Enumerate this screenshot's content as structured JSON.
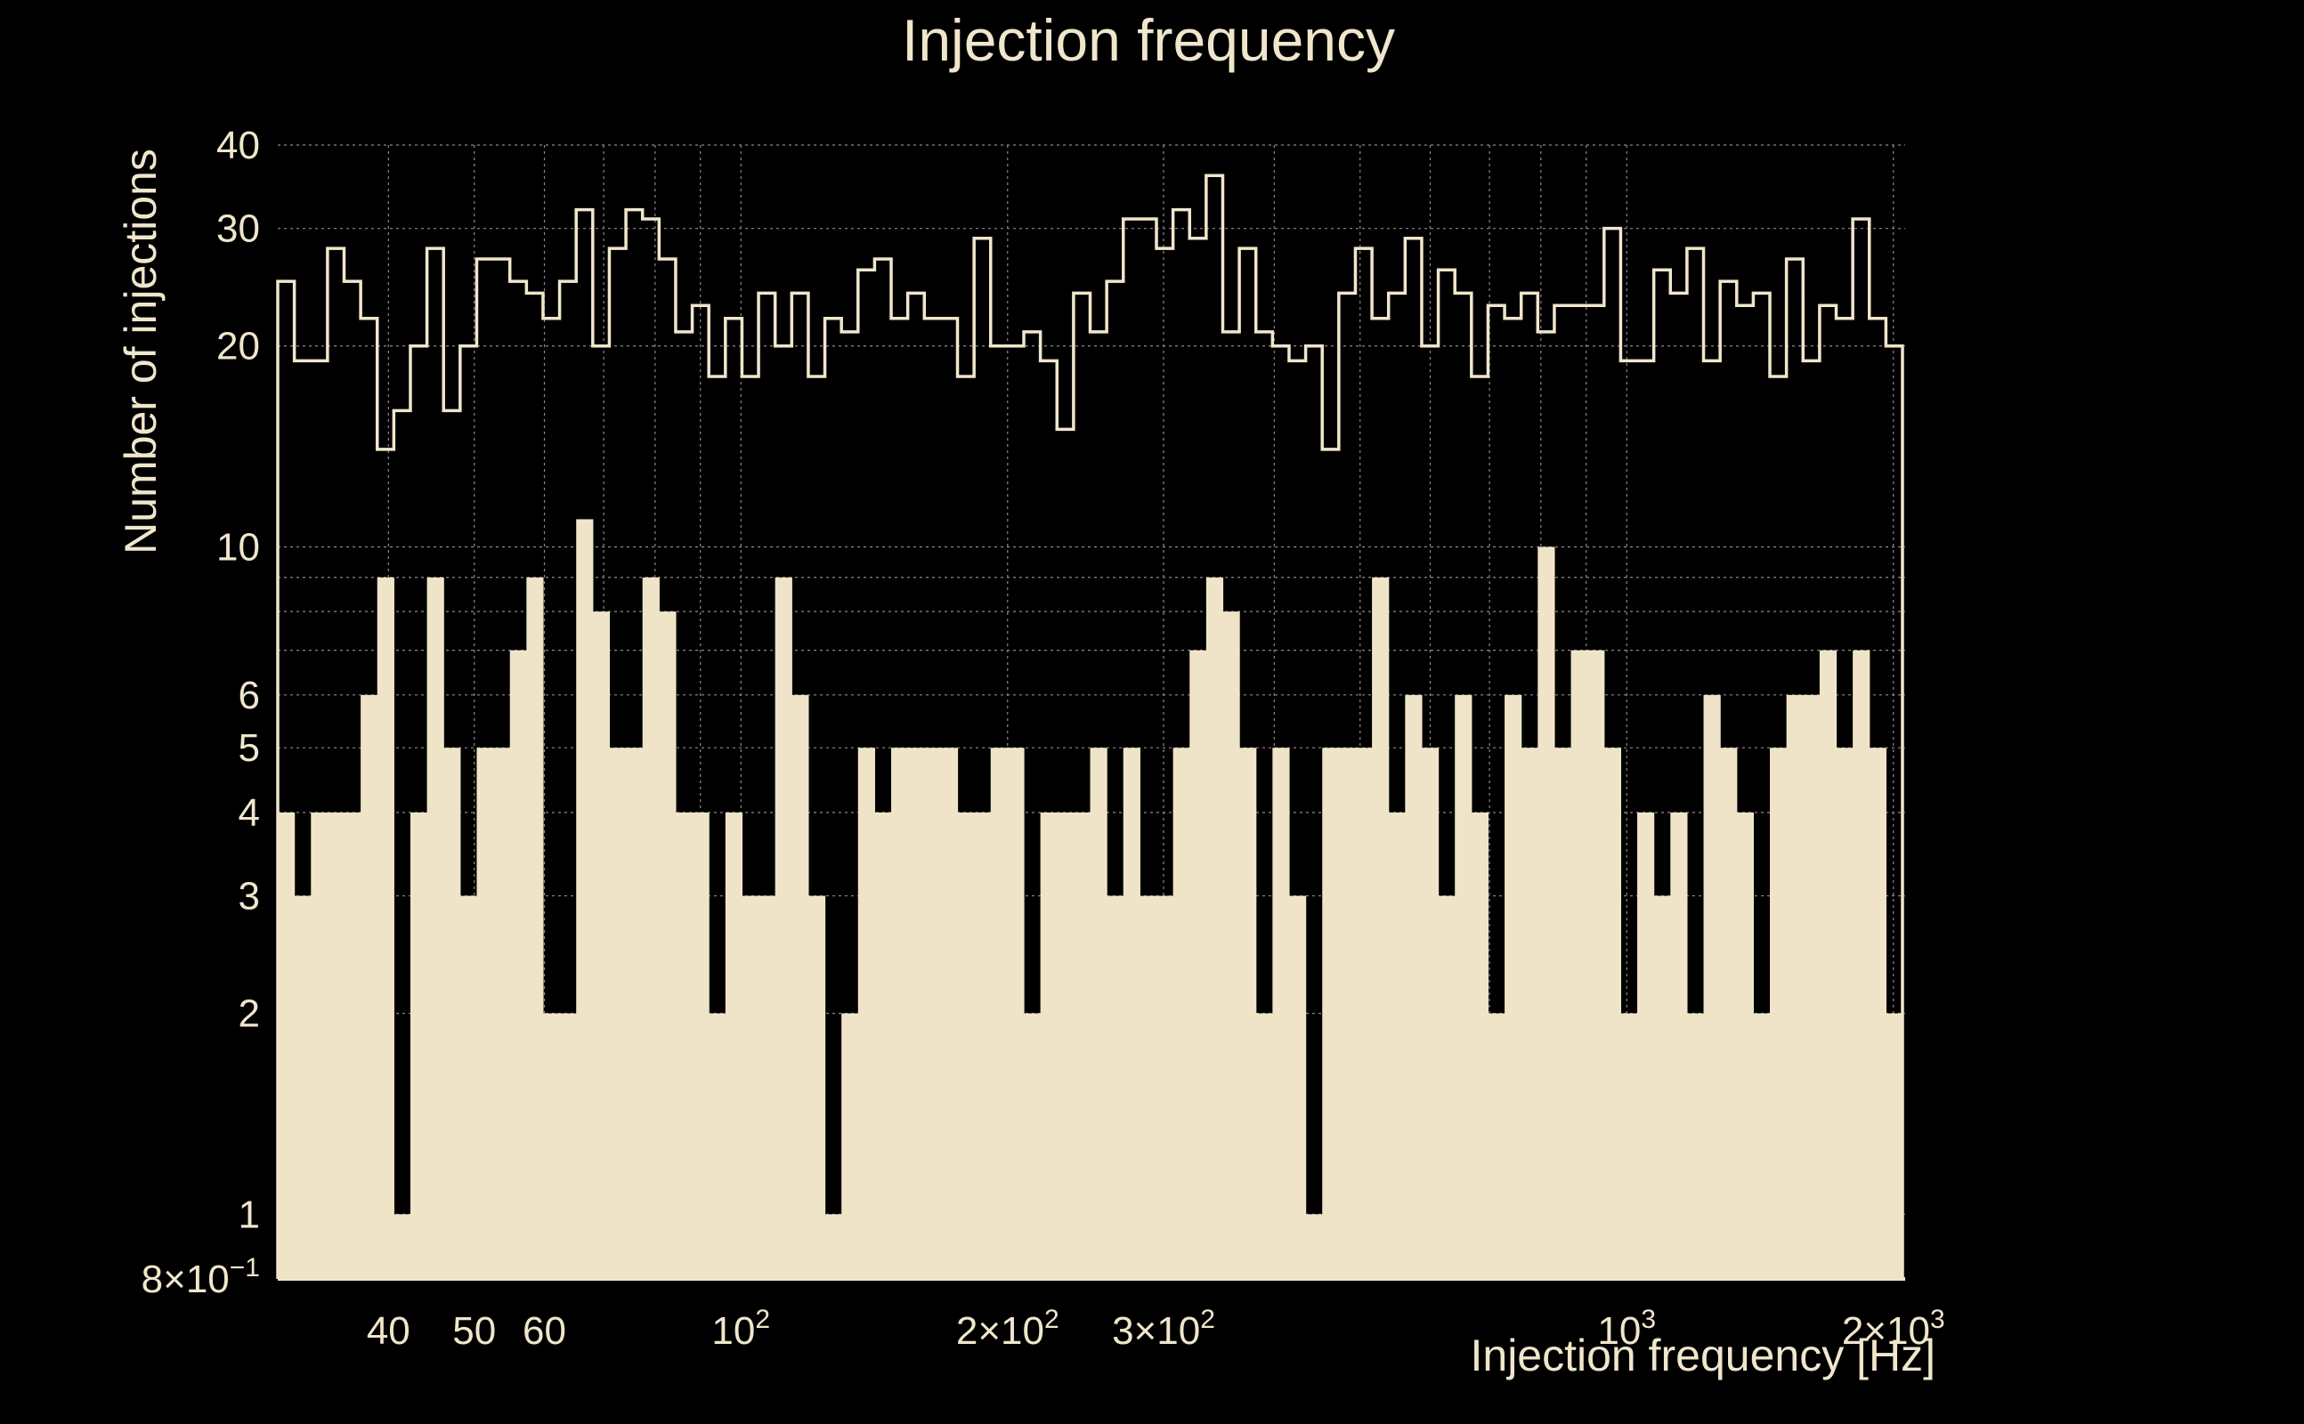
{
  "colors": {
    "background": "#000000",
    "fill": "#efe4c7",
    "line": "#f0e6cc",
    "grid": "#8a8a8a"
  },
  "chart_data": {
    "type": "histogram",
    "title": "Injection frequency",
    "xlabel": "Injection frequency [Hz]",
    "ylabel": "Number of injections",
    "xscale": "log",
    "yscale": "log",
    "xlim": [
      30,
      2048
    ],
    "ylim": [
      0.8,
      40
    ],
    "grid": true,
    "x_ticks": [
      {
        "value": 40,
        "label": "40",
        "sup": ""
      },
      {
        "value": 50,
        "label": "50",
        "sup": ""
      },
      {
        "value": 60,
        "label": "60",
        "sup": ""
      },
      {
        "value": 100,
        "label": "10",
        "sup": "2"
      },
      {
        "value": 200,
        "label": "2×10",
        "sup": "2"
      },
      {
        "value": 300,
        "label": "3×10",
        "sup": "2"
      },
      {
        "value": 1000,
        "label": "10",
        "sup": "3"
      },
      {
        "value": 2000,
        "label": "2×10",
        "sup": "3"
      }
    ],
    "y_ticks": [
      {
        "value": 0.8,
        "label": "8×10",
        "sup": "−1"
      },
      {
        "value": 1,
        "label": "1",
        "sup": ""
      },
      {
        "value": 2,
        "label": "2",
        "sup": ""
      },
      {
        "value": 3,
        "label": "3",
        "sup": ""
      },
      {
        "value": 4,
        "label": "4",
        "sup": ""
      },
      {
        "value": 5,
        "label": "5",
        "sup": ""
      },
      {
        "value": 6,
        "label": "6",
        "sup": ""
      },
      {
        "value": 10,
        "label": "10",
        "sup": ""
      },
      {
        "value": 20,
        "label": "20",
        "sup": ""
      },
      {
        "value": 30,
        "label": "30",
        "sup": ""
      },
      {
        "value": 40,
        "label": "40",
        "sup": ""
      }
    ],
    "y_minor_grid": [
      7,
      8,
      9
    ],
    "series": [
      {
        "name": "filled-histogram",
        "style": "filled",
        "values": [
          4,
          3,
          4,
          4,
          4,
          6,
          9,
          1,
          4,
          9,
          5,
          3,
          5,
          5,
          7,
          9,
          2,
          2,
          11,
          8,
          5,
          5,
          9,
          8,
          4,
          4,
          2,
          4,
          3,
          3,
          9,
          6,
          3,
          1,
          2,
          5,
          4,
          5,
          5,
          5,
          5,
          4,
          4,
          5,
          5,
          2,
          4,
          4,
          4,
          5,
          3,
          5,
          3,
          3,
          5,
          7,
          9,
          8,
          5,
          2,
          5,
          3,
          1,
          5,
          5,
          5,
          9,
          4,
          6,
          5,
          3,
          6,
          4,
          2,
          6,
          5,
          10,
          5,
          7,
          7,
          5,
          2,
          4,
          3,
          4,
          2,
          6,
          5,
          4,
          2,
          5,
          6,
          6,
          7,
          5,
          7,
          5,
          2
        ]
      },
      {
        "name": "outline-histogram",
        "style": "step",
        "values": [
          25,
          19,
          19,
          28,
          25,
          22,
          14,
          16,
          20,
          28,
          16,
          20,
          27,
          27,
          25,
          24,
          22,
          25,
          32,
          20,
          28,
          32,
          31,
          27,
          21,
          23,
          18,
          22,
          18,
          24,
          20,
          24,
          18,
          22,
          21,
          26,
          27,
          22,
          24,
          22,
          22,
          18,
          29,
          20,
          20,
          21,
          19,
          15,
          24,
          21,
          25,
          31,
          31,
          28,
          32,
          29,
          36,
          21,
          28,
          21,
          20,
          19,
          20,
          14,
          24,
          28,
          22,
          24,
          29,
          20,
          26,
          24,
          18,
          23,
          22,
          24,
          21,
          23,
          23,
          23,
          30,
          19,
          19,
          26,
          24,
          28,
          19,
          25,
          23,
          24,
          18,
          27,
          19,
          23,
          22,
          31,
          22,
          20
        ]
      }
    ]
  }
}
